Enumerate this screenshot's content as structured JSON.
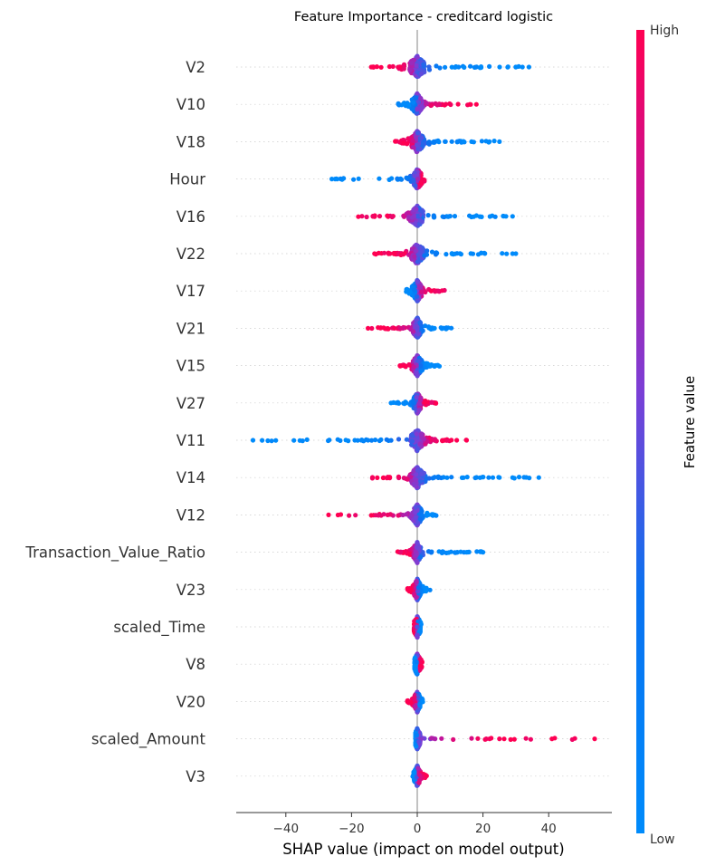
{
  "chart_data": {
    "type": "scatter",
    "subtype": "shap-beeswarm",
    "title": "Feature Importance - creditcard logistic",
    "xlabel": "SHAP value (impact on model output)",
    "xlim": [
      -56,
      59
    ],
    "xticks": [
      {
        "value": -40,
        "label": "−40"
      },
      {
        "value": -20,
        "label": "−20"
      },
      {
        "value": 0,
        "label": "0"
      },
      {
        "value": 20,
        "label": "20"
      },
      {
        "value": 40,
        "label": "40"
      }
    ],
    "grid": false,
    "colorbar": {
      "label": "Feature value",
      "high_label": "High",
      "low_label": "Low",
      "high_color": "#ff0052",
      "mid_color": "#8a2dd4",
      "low_color": "#008bfb"
    },
    "features": [
      {
        "name": "V2",
        "min": -15,
        "max": 34,
        "outliers": [
          30,
          32,
          34,
          -14
        ],
        "dir": "neg",
        "spread": 2.2
      },
      {
        "name": "V10",
        "min": -6,
        "max": 18,
        "outliers": [
          16,
          18
        ],
        "dir": "pos",
        "spread": 1.4
      },
      {
        "name": "V18",
        "min": -7,
        "max": 26,
        "outliers": [
          25
        ],
        "dir": "neg",
        "spread": 1.8
      },
      {
        "name": "Hour",
        "min": -26,
        "max": 2.5,
        "outliers": [
          -26,
          -25
        ],
        "dir": "pos",
        "spread": 1.2
      },
      {
        "name": "V16",
        "min": -19,
        "max": 29,
        "outliers": [
          27,
          29
        ],
        "dir": "neg",
        "spread": 1.8
      },
      {
        "name": "V22",
        "min": -13,
        "max": 30,
        "outliers": [
          -13,
          29,
          30
        ],
        "dir": "neg",
        "spread": 1.8
      },
      {
        "name": "V17",
        "min": -3.5,
        "max": 8.5,
        "outliers": [],
        "dir": "pos",
        "spread": 1.3
      },
      {
        "name": "V21",
        "min": -15,
        "max": 11,
        "outliers": [
          -15,
          -7
        ],
        "dir": "neg",
        "spread": 1.3
      },
      {
        "name": "V15",
        "min": -7,
        "max": 7,
        "outliers": [],
        "dir": "neg",
        "spread": 1.3
      },
      {
        "name": "V27",
        "min": -8,
        "max": 6,
        "outliers": [
          -8
        ],
        "dir": "pos",
        "spread": 1.1
      },
      {
        "name": "V11",
        "min": -50,
        "max": 15,
        "outliers": [
          -50,
          -19,
          -17,
          -15,
          12,
          15
        ],
        "dir": "pos",
        "spread": 1.8
      },
      {
        "name": "V14",
        "min": -15,
        "max": 37,
        "outliers": [
          23,
          25,
          29,
          37
        ],
        "dir": "neg",
        "spread": 1.8
      },
      {
        "name": "V12",
        "min": -27,
        "max": 8,
        "outliers": [
          -27,
          -9
        ],
        "dir": "neg",
        "spread": 1.3
      },
      {
        "name": "Transaction_Value_Ratio",
        "min": -6,
        "max": 20,
        "outliers": [
          15,
          20
        ],
        "dir": "neg",
        "spread": 1.1
      },
      {
        "name": "V23",
        "min": -3,
        "max": 4,
        "outliers": [],
        "dir": "neg",
        "spread": 1.0
      },
      {
        "name": "scaled_Time",
        "min": -1,
        "max": 1.5,
        "outliers": [],
        "dir": "neg",
        "spread": 1.0
      },
      {
        "name": "V8",
        "min": -0.8,
        "max": 1.5,
        "outliers": [],
        "dir": "pos",
        "spread": 1.0
      },
      {
        "name": "V20",
        "min": -3,
        "max": 2,
        "outliers": [
          -3
        ],
        "dir": "neg",
        "spread": 0.9
      },
      {
        "name": "scaled_Amount",
        "min": -0.5,
        "max": 54,
        "outliers": [
          21,
          22,
          25,
          41,
          54
        ],
        "dir": "pos",
        "spread": 0.9
      },
      {
        "name": "V3",
        "min": -1.5,
        "max": 3,
        "outliers": [],
        "dir": "pos",
        "spread": 0.9
      }
    ]
  }
}
